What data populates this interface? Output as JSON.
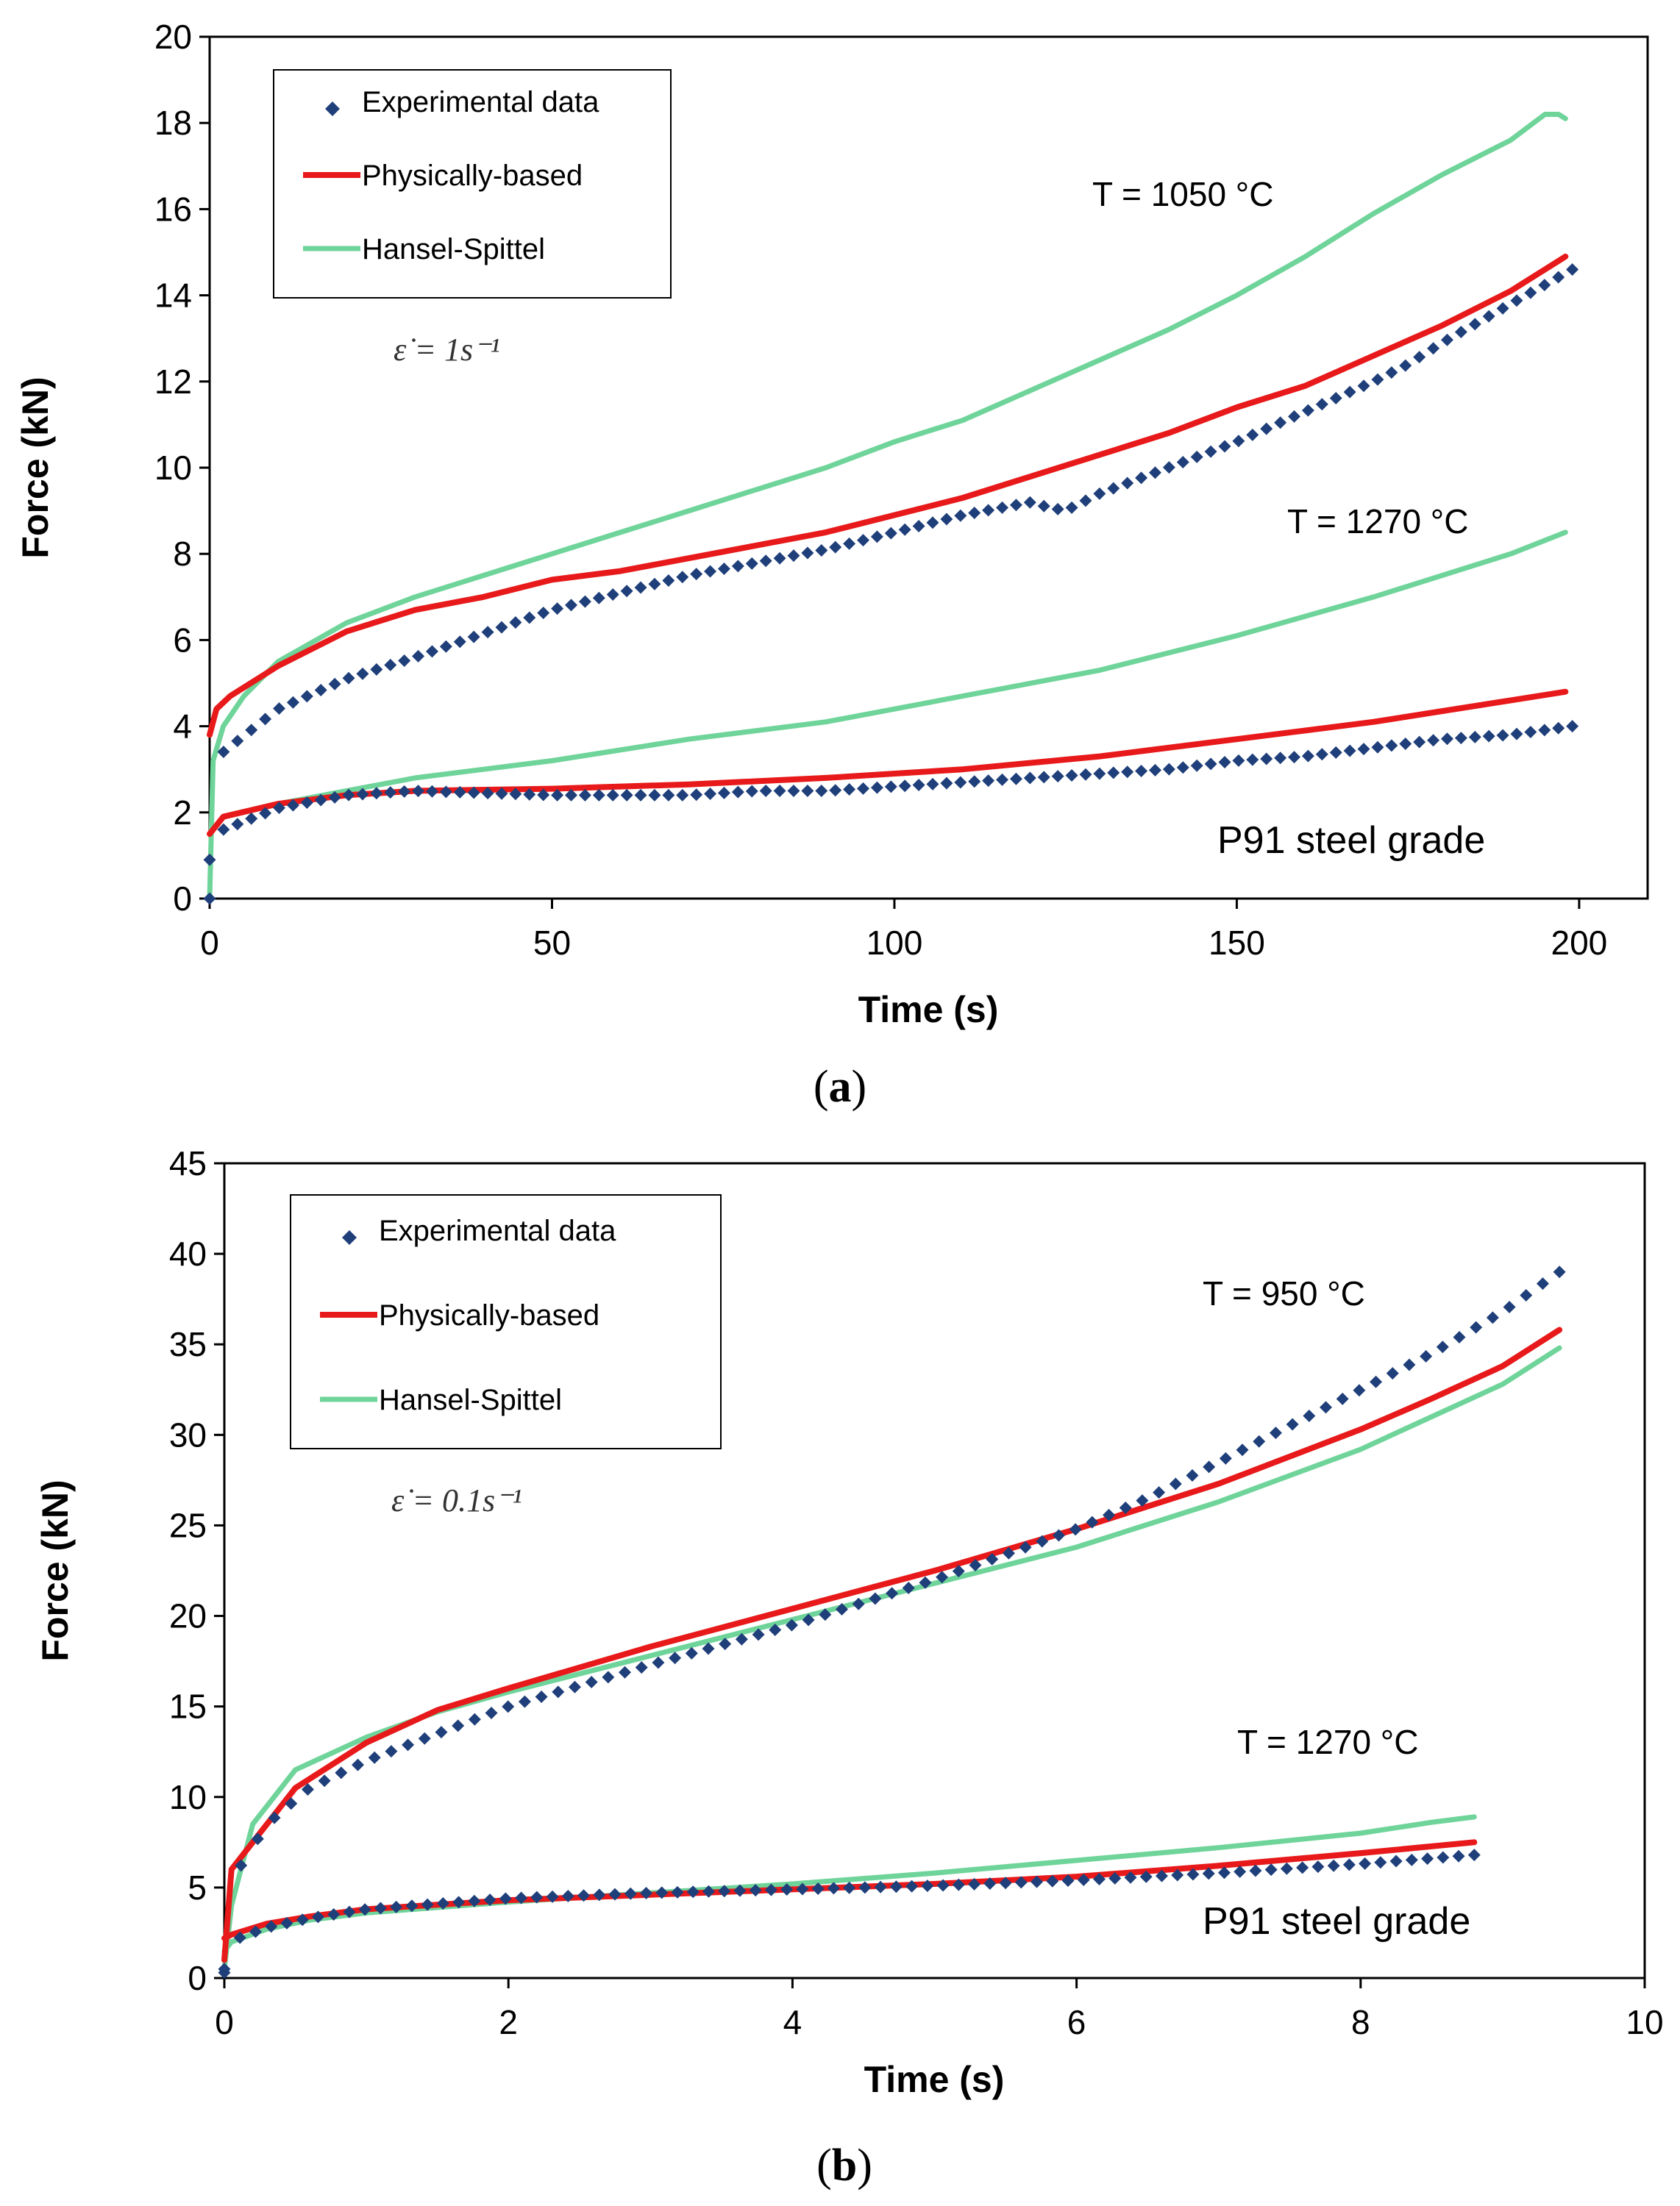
{
  "colors": {
    "experimental": "#1f3f7a",
    "physical": "#e8191a",
    "hansel": "#6fd49a"
  },
  "chart_data": [
    {
      "type": "line",
      "panel": "a",
      "caption_letter": "a",
      "xlabel": "Time (s)",
      "ylabel": "Force  (kN)",
      "xlim": [
        0,
        210
      ],
      "ylim": [
        0,
        20
      ],
      "xticks": [
        "0",
        "50",
        "100",
        "150",
        "200"
      ],
      "yticks": [
        "0",
        "2",
        "4",
        "6",
        "8",
        "10",
        "12",
        "14",
        "16",
        "18",
        "20"
      ],
      "legend": [
        "Experimental data",
        "Physically-based",
        "Hansel-Spittel"
      ],
      "strain_rate_label": "ε̇ = 1s⁻¹",
      "material_label": "P91  steel  grade",
      "temperature_labels": [
        "T  =  1050 °C",
        "T  =  1270 °C"
      ],
      "series": [
        {
          "name": "Experimental data",
          "group": "T  =  1050 °C",
          "style": "dots",
          "x": [
            0,
            2,
            10,
            20,
            30,
            50,
            60,
            70,
            80,
            90,
            100,
            110,
            120,
            122,
            125,
            130,
            140,
            150,
            160,
            170,
            175,
            180,
            190,
            199
          ],
          "y": [
            0.9,
            3.4,
            4.4,
            5.1,
            5.6,
            6.7,
            7.1,
            7.5,
            7.8,
            8.1,
            8.5,
            8.9,
            9.2,
            9.1,
            9.0,
            9.4,
            10.0,
            10.6,
            11.3,
            12.0,
            12.4,
            12.9,
            13.8,
            14.6
          ]
        },
        {
          "name": "Physically-based",
          "group": "T  =  1050 °C",
          "style": "line",
          "x": [
            0,
            1,
            3,
            10,
            20,
            30,
            40,
            50,
            60,
            70,
            80,
            90,
            100,
            110,
            120,
            130,
            140,
            150,
            160,
            170,
            180,
            190,
            197,
            198
          ],
          "y": [
            3.8,
            4.4,
            4.7,
            5.4,
            6.2,
            6.7,
            7.0,
            7.4,
            7.6,
            7.9,
            8.2,
            8.5,
            8.9,
            9.3,
            9.8,
            10.3,
            10.8,
            11.4,
            11.9,
            12.6,
            13.3,
            14.1,
            14.8,
            14.9
          ]
        },
        {
          "name": "Hansel-Spittel",
          "group": "T  =  1050 °C",
          "style": "line",
          "x": [
            0,
            0.5,
            2,
            5,
            10,
            20,
            30,
            40,
            50,
            60,
            70,
            80,
            90,
            100,
            110,
            120,
            130,
            140,
            150,
            160,
            170,
            180,
            190,
            195,
            197,
            198
          ],
          "y": [
            0,
            3.2,
            4.0,
            4.7,
            5.5,
            6.4,
            7.0,
            7.5,
            8.0,
            8.5,
            9.0,
            9.5,
            10.0,
            10.6,
            11.1,
            11.8,
            12.5,
            13.2,
            14.0,
            14.9,
            15.9,
            16.8,
            17.6,
            18.2,
            18.2,
            18.1
          ]
        },
        {
          "name": "Experimental data",
          "group": "T  =  1270 °C",
          "style": "dots",
          "x": [
            0,
            2,
            10,
            20,
            30,
            50,
            60,
            70,
            80,
            90,
            100,
            110,
            120,
            130,
            140,
            150,
            160,
            170,
            180,
            190,
            199
          ],
          "y": [
            0,
            1.6,
            2.1,
            2.4,
            2.5,
            2.4,
            2.4,
            2.4,
            2.5,
            2.5,
            2.6,
            2.7,
            2.8,
            2.9,
            3.0,
            3.2,
            3.3,
            3.5,
            3.7,
            3.8,
            4.0
          ]
        },
        {
          "name": "Physically-based",
          "group": "T  =  1270 °C",
          "style": "line",
          "x": [
            0,
            2,
            10,
            20,
            30,
            50,
            70,
            90,
            110,
            130,
            150,
            170,
            190,
            198
          ],
          "y": [
            1.5,
            1.9,
            2.2,
            2.4,
            2.5,
            2.55,
            2.65,
            2.8,
            3.0,
            3.3,
            3.7,
            4.1,
            4.6,
            4.8
          ]
        },
        {
          "name": "Hansel-Spittel",
          "group": "T  =  1270 °C",
          "style": "line",
          "x": [
            0,
            2,
            10,
            20,
            30,
            50,
            70,
            90,
            110,
            130,
            150,
            170,
            190,
            198
          ],
          "y": [
            1.5,
            1.9,
            2.2,
            2.5,
            2.8,
            3.2,
            3.7,
            4.1,
            4.7,
            5.3,
            6.1,
            7.0,
            8.0,
            8.5
          ]
        }
      ]
    },
    {
      "type": "line",
      "panel": "b",
      "caption_letter": "b",
      "xlabel": "Time (s)",
      "ylabel": "Force  (kN)",
      "xlim": [
        0,
        10
      ],
      "ylim": [
        0,
        45
      ],
      "xticks": [
        "0",
        "2",
        "4",
        "6",
        "8",
        "10"
      ],
      "yticks": [
        "0",
        "5",
        "10",
        "15",
        "20",
        "25",
        "30",
        "35",
        "40",
        "45"
      ],
      "legend": [
        "Experimental data",
        "Physically-based",
        "Hansel-Spittel"
      ],
      "strain_rate_label": "ε̇ = 0.1s⁻¹",
      "material_label": "P91  steel  grade",
      "temperature_labels": [
        "T  =  950 °C",
        "T  =  1270 °C"
      ],
      "series": [
        {
          "name": "Experimental data",
          "group": "T  =  950 °C",
          "style": "dots",
          "x": [
            0,
            0.1,
            0.3,
            0.6,
            1,
            1.5,
            2,
            3,
            4,
            5,
            6,
            6.5,
            7,
            7.5,
            8,
            8.5,
            9,
            9.4
          ],
          "y": [
            0.5,
            6,
            8.5,
            10.5,
            12,
            13.5,
            15,
            17.3,
            19.5,
            22,
            24.8,
            26.5,
            28.5,
            30.5,
            32.5,
            34.5,
            36.8,
            39
          ]
        },
        {
          "name": "Physically-based",
          "group": "T  =  950 °C",
          "style": "line",
          "x": [
            0,
            0.05,
            0.2,
            0.5,
            1,
            1.5,
            2,
            3,
            4,
            5,
            6,
            7,
            8,
            8.5,
            9,
            9.4
          ],
          "y": [
            1,
            6,
            7.5,
            10.5,
            13,
            14.8,
            16,
            18.3,
            20.4,
            22.5,
            24.8,
            27.3,
            30.3,
            32,
            33.8,
            35.8
          ]
        },
        {
          "name": "Hansel-Spittel",
          "group": "T  =  950 °C",
          "style": "line",
          "x": [
            0,
            0.05,
            0.2,
            0.5,
            1,
            1.5,
            2,
            3,
            4,
            5,
            6,
            7,
            8,
            8.5,
            9,
            9.4
          ],
          "y": [
            0.5,
            4,
            8.5,
            11.5,
            13.3,
            14.7,
            15.8,
            17.8,
            19.8,
            21.8,
            23.8,
            26.3,
            29.2,
            31,
            32.8,
            34.8
          ]
        },
        {
          "name": "Experimental data",
          "group": "T  =  1270 °C",
          "style": "dots",
          "x": [
            0,
            0.1,
            0.3,
            0.6,
            1,
            1.5,
            2,
            3,
            4,
            5,
            6,
            7,
            8,
            8.8
          ],
          "y": [
            0.3,
            2.2,
            2.8,
            3.3,
            3.8,
            4.1,
            4.4,
            4.7,
            4.9,
            5.1,
            5.4,
            5.8,
            6.3,
            6.8
          ]
        },
        {
          "name": "Physically-based",
          "group": "T  =  1270 °C",
          "style": "line",
          "x": [
            0,
            0.05,
            0.3,
            0.6,
            1,
            2,
            3,
            4,
            5,
            6,
            7,
            8,
            8.8
          ],
          "y": [
            2.2,
            2.4,
            3.0,
            3.4,
            3.8,
            4.3,
            4.6,
            4.9,
            5.2,
            5.6,
            6.2,
            6.9,
            7.5
          ]
        },
        {
          "name": "Hansel-Spittel",
          "group": "T  =  1270 °C",
          "style": "line",
          "x": [
            0,
            0.05,
            0.3,
            0.6,
            1,
            2,
            3,
            4,
            5,
            6,
            7,
            8,
            8.5,
            8.8
          ],
          "y": [
            1.5,
            2.0,
            2.7,
            3.2,
            3.6,
            4.2,
            4.7,
            5.2,
            5.8,
            6.5,
            7.2,
            8.0,
            8.6,
            8.9
          ]
        }
      ]
    }
  ]
}
